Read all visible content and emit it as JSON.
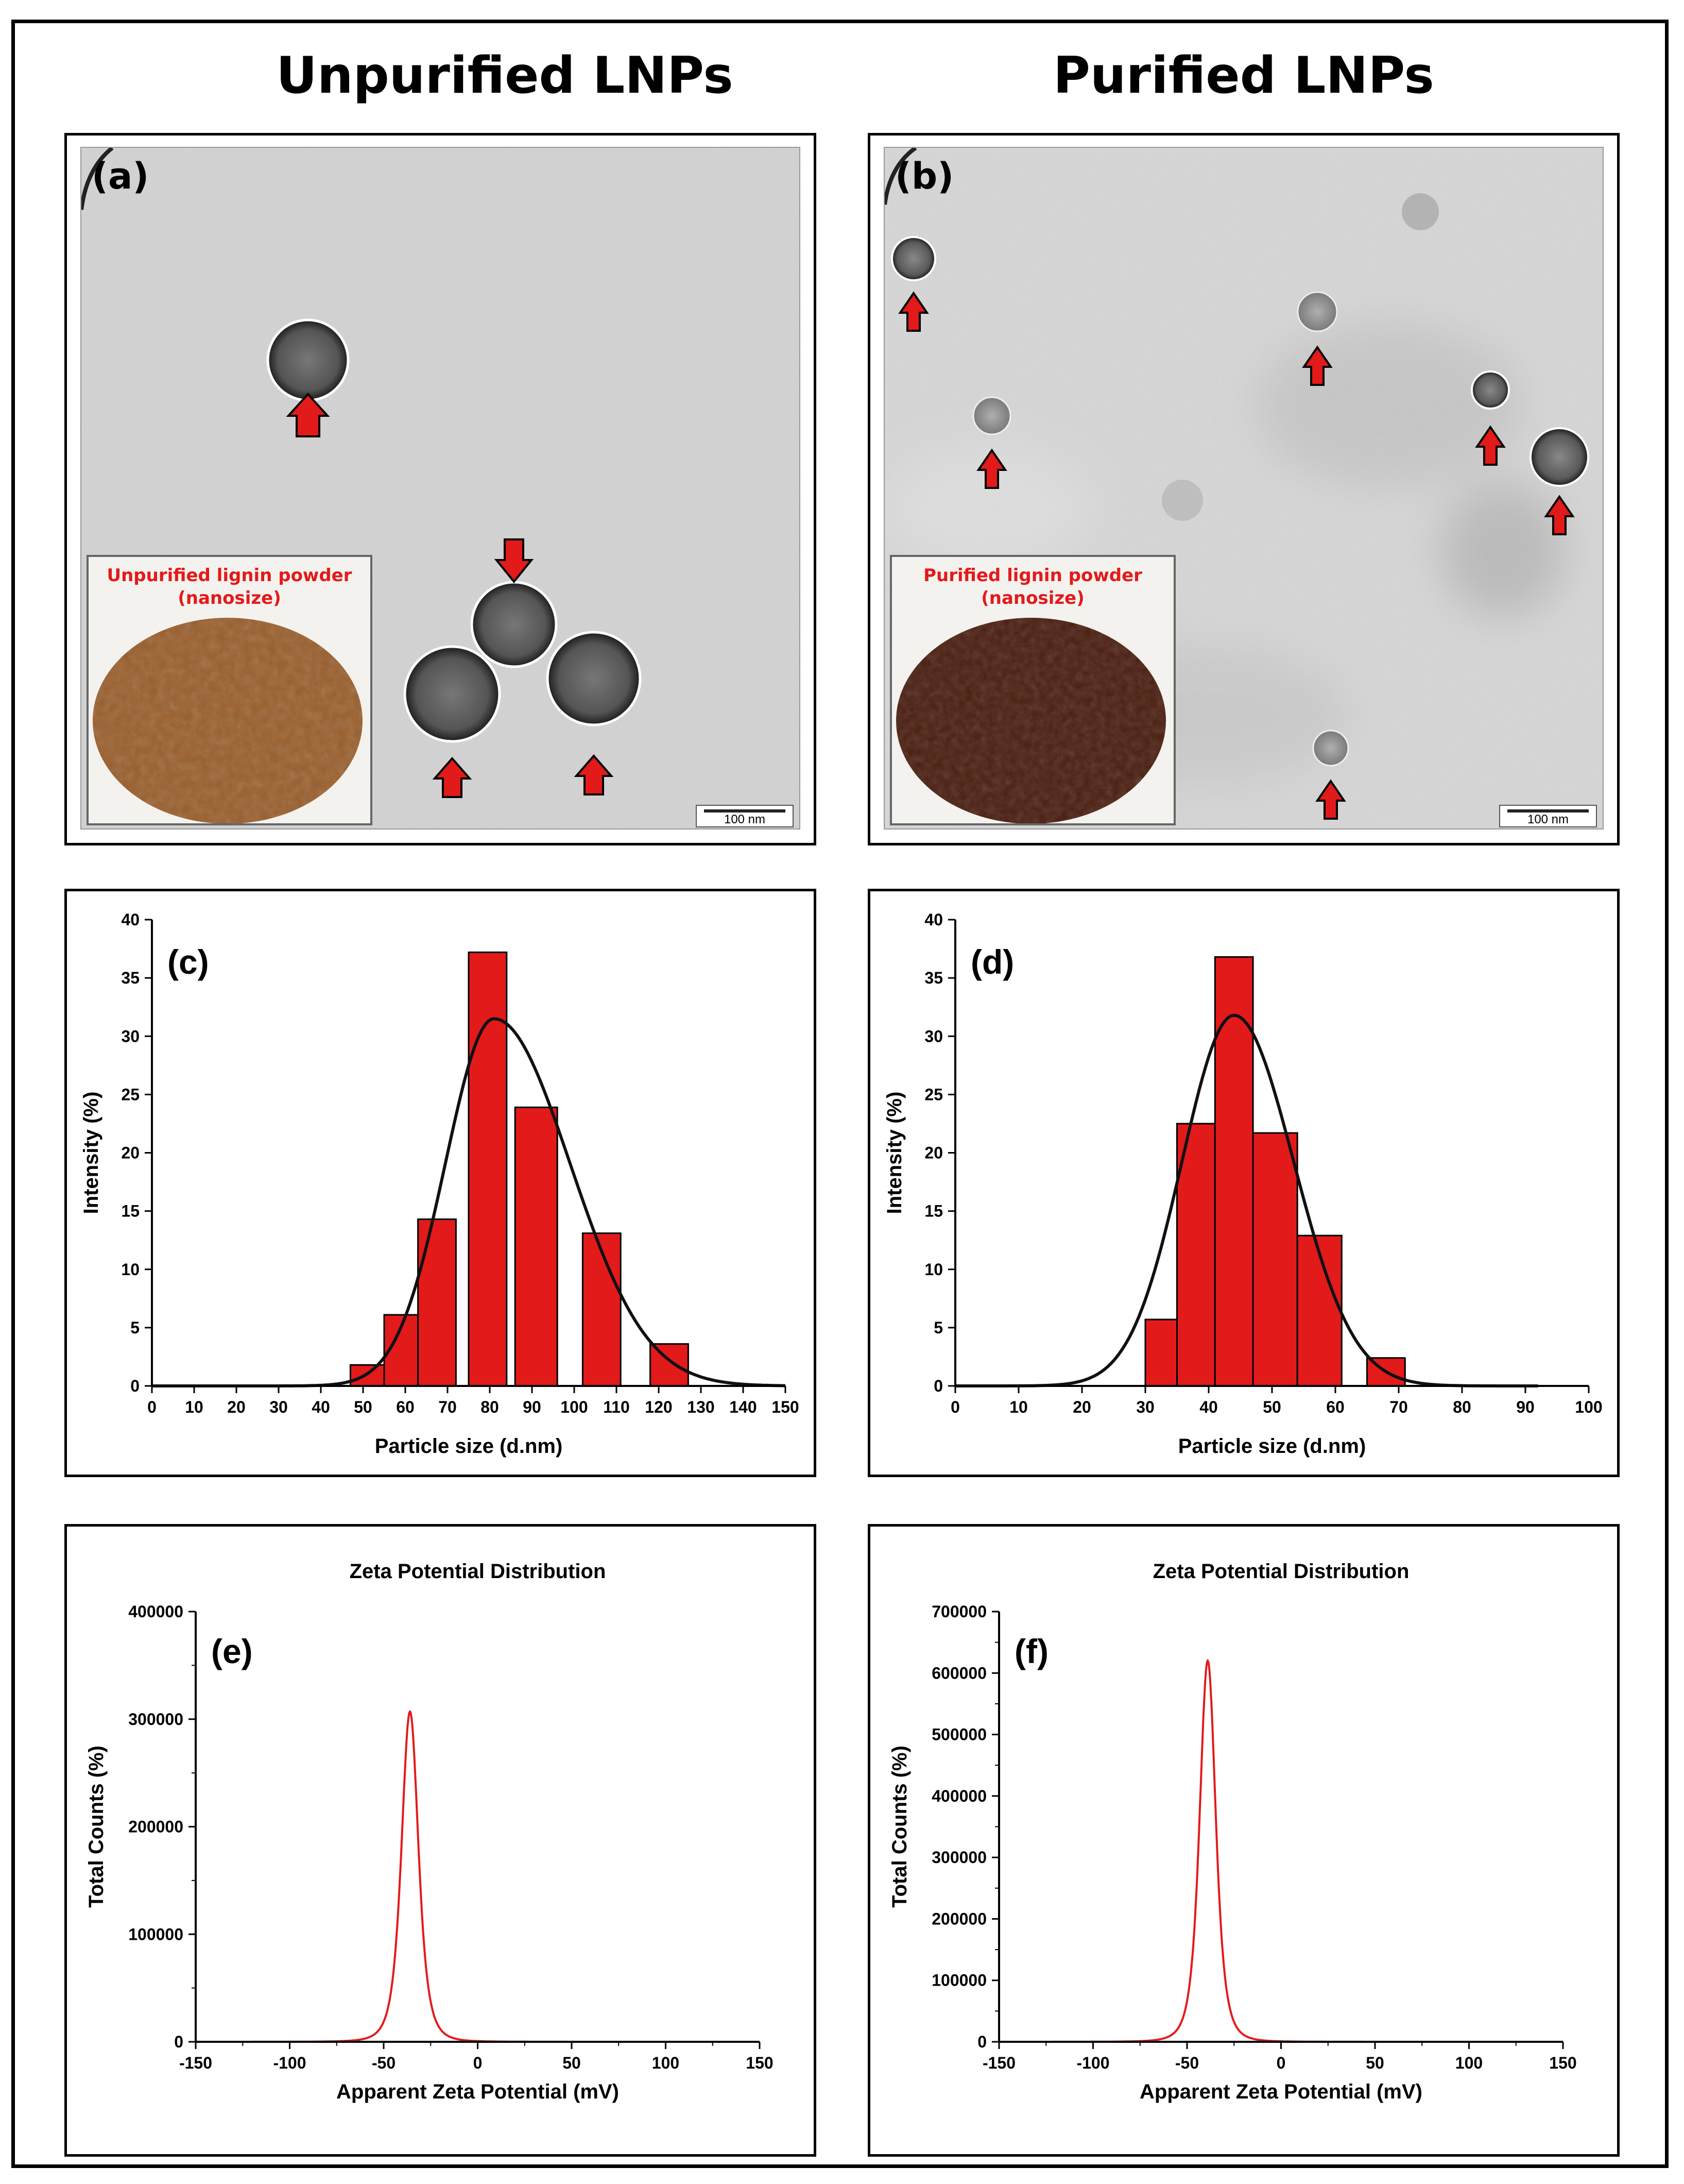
{
  "titles": {
    "left": "Unpurified LNPs",
    "right": "Purified LNPs"
  },
  "colors": {
    "accent": "#e31a1a",
    "frame": "#000000",
    "fit_line": "#111111",
    "unpurified_powder": "#9a5e2c",
    "purified_powder": "#4a1e10",
    "tem_bg": "#d3d3d3"
  },
  "panel_a": {
    "letter": "(a)",
    "inset_label_line1": "Unpurified lignin powder",
    "inset_label_line2": "(nanosize)",
    "scale_bar": "100 nm"
  },
  "panel_b": {
    "letter": "(b)",
    "inset_label_line1": "Purified lignin powder",
    "inset_label_line2": "(nanosize)",
    "scale_bar": "100 nm"
  },
  "chart_data": [
    {
      "panel": "(c)",
      "type": "bar",
      "xlabel": "Particle size (d.nm)",
      "ylabel": "Intensity (%)",
      "xlim": [
        0,
        150
      ],
      "ylim": [
        0,
        40
      ],
      "xticks": [
        0,
        10,
        20,
        30,
        40,
        50,
        60,
        70,
        80,
        90,
        100,
        110,
        120,
        130,
        140,
        150
      ],
      "yticks": [
        0,
        5,
        10,
        15,
        20,
        25,
        30,
        35,
        40
      ],
      "bars": [
        {
          "x0": 47,
          "x1": 55,
          "value": 1.8
        },
        {
          "x0": 55,
          "x1": 63,
          "value": 6.1
        },
        {
          "x0": 63,
          "x1": 72,
          "value": 14.3
        },
        {
          "x0": 75,
          "x1": 84,
          "value": 37.2
        },
        {
          "x0": 86,
          "x1": 96,
          "value": 23.9
        },
        {
          "x0": 102,
          "x1": 111,
          "value": 13.1
        },
        {
          "x0": 118,
          "x1": 127,
          "value": 3.6
        }
      ],
      "fit": {
        "center": 81,
        "amplitude": 31.5,
        "sigma_left": 11.5,
        "sigma_right": 18,
        "x_range": [
          0,
          150
        ]
      }
    },
    {
      "panel": "(d)",
      "type": "bar",
      "xlabel": "Particle size (d.nm)",
      "ylabel": "Intensity (%)",
      "xlim": [
        0,
        100
      ],
      "ylim": [
        0,
        40
      ],
      "xticks": [
        0,
        10,
        20,
        30,
        40,
        50,
        60,
        70,
        80,
        90,
        100
      ],
      "yticks": [
        0,
        5,
        10,
        15,
        20,
        25,
        30,
        35,
        40
      ],
      "bars": [
        {
          "x0": 30,
          "x1": 35,
          "value": 5.7
        },
        {
          "x0": 35,
          "x1": 41,
          "value": 22.5
        },
        {
          "x0": 41,
          "x1": 47,
          "value": 36.8
        },
        {
          "x0": 47,
          "x1": 54,
          "value": 21.7
        },
        {
          "x0": 54,
          "x1": 61,
          "value": 12.9
        },
        {
          "x0": 65,
          "x1": 71,
          "value": 2.4
        }
      ],
      "fit": {
        "center": 44,
        "amplitude": 31.8,
        "sigma_left": 8.2,
        "sigma_right": 9.4,
        "x_range": [
          0,
          92
        ]
      }
    },
    {
      "panel": "(e)",
      "type": "line",
      "title": "Zeta Potential Distribution",
      "xlabel": "Apparent Zeta Potential (mV)",
      "ylabel": "Total Counts (%)",
      "xlim": [
        -150,
        150
      ],
      "ylim": [
        0,
        400000
      ],
      "xticks": [
        -150,
        -100,
        -50,
        0,
        50,
        100,
        150
      ],
      "yticks": [
        0,
        100000,
        200000,
        300000,
        400000
      ],
      "minor_y": 50000,
      "series": [
        {
          "name": "zeta",
          "peak_x": -36,
          "peak_y": 307000,
          "gamma": 4.2
        }
      ]
    },
    {
      "panel": "(f)",
      "type": "line",
      "title": "Zeta Potential Distribution",
      "xlabel": "Apparent Zeta Potential (mV)",
      "ylabel": "Total Counts (%)",
      "xlim": [
        -150,
        150
      ],
      "ylim": [
        0,
        700000
      ],
      "xticks": [
        -150,
        -100,
        -50,
        0,
        50,
        100,
        150
      ],
      "yticks": [
        0,
        100000,
        200000,
        300000,
        400000,
        500000,
        600000,
        700000
      ],
      "minor_y": 50000,
      "series": [
        {
          "name": "zeta",
          "peak_x": -39,
          "peak_y": 620000,
          "gamma": 4.0
        }
      ]
    }
  ]
}
